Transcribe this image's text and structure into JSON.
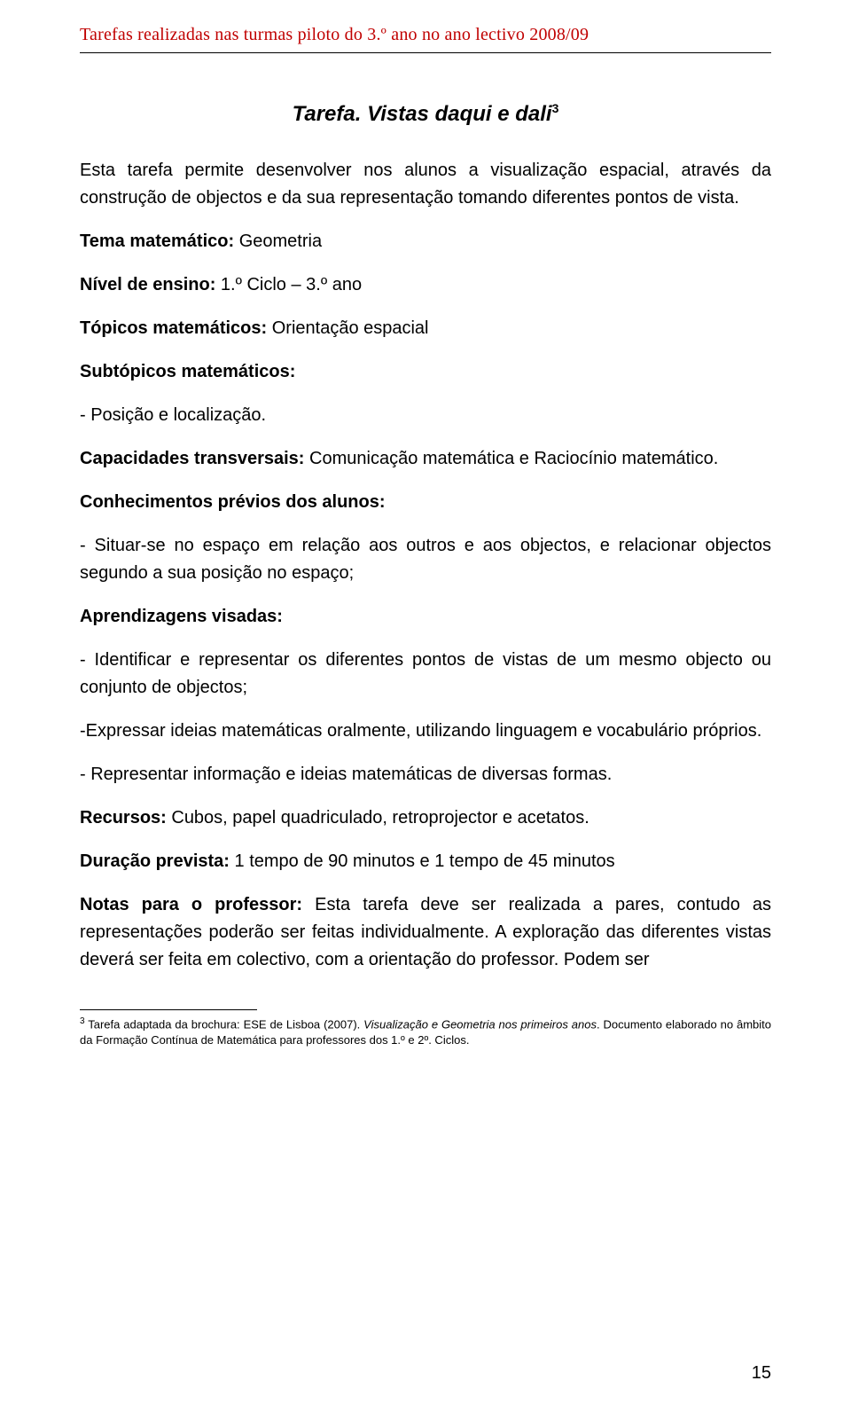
{
  "header": {
    "running_head": "Tarefas realizadas nas turmas piloto do 3.º ano no ano lectivo 2008/09"
  },
  "title": {
    "text": "Tarefa. Vistas daqui e dali",
    "sup": "3"
  },
  "body": {
    "intro": "Esta tarefa permite desenvolver nos alunos a visualização espacial, através da construção de objectos e da sua representação tomando diferentes pontos de vista.",
    "tema_label": "Tema matemático:",
    "tema_val": " Geometria",
    "nivel_label": "Nível de ensino:",
    "nivel_val": " 1.º Ciclo – 3.º ano",
    "topicos_label": "Tópicos matemáticos:",
    "topicos_val": " Orientação espacial",
    "subtopicos_label": "Subtópicos matemáticos:",
    "subtopicos_item": "- Posição e localização.",
    "capac_label": "Capacidades transversais:",
    "capac_val": " Comunicação matemática e Raciocínio matemático.",
    "conhec_label": "Conhecimentos prévios dos alunos:",
    "conhec_item": "- Situar-se no espaço em relação aos outros e aos objectos, e relacionar objectos segundo a sua posição no espaço;",
    "aprend_label": "Aprendizagens visadas:",
    "aprend_item1": "- Identificar e representar os diferentes pontos de vistas de um mesmo objecto ou conjunto de objectos;",
    "aprend_item2": "-Expressar ideias matemáticas oralmente, utilizando linguagem e vocabulário próprios.",
    "aprend_item3": "- Representar informação e ideias matemáticas de diversas formas.",
    "recursos_label": "Recursos:",
    "recursos_val": " Cubos, papel quadriculado, retroprojector e acetatos.",
    "duracao_label": "Duração prevista:",
    "duracao_val": " 1 tempo de 90 minutos e 1 tempo de 45 minutos",
    "notas_label": "Notas para o professor:",
    "notas_val": " Esta tarefa deve ser realizada a pares, contudo as representações poderão ser feitas individualmente. A exploração das diferentes vistas deverá ser feita em colectivo, com a orientação do professor. Podem ser"
  },
  "footnote": {
    "num": "3",
    "part1": " Tarefa adaptada da brochura: ESE de Lisboa (2007). ",
    "italic": "Visualização e Geometria nos primeiros anos",
    "part2": ". Documento elaborado no âmbito da Formação Contínua de Matemática para professores dos 1.º e 2º. Ciclos."
  },
  "page_number": "15"
}
